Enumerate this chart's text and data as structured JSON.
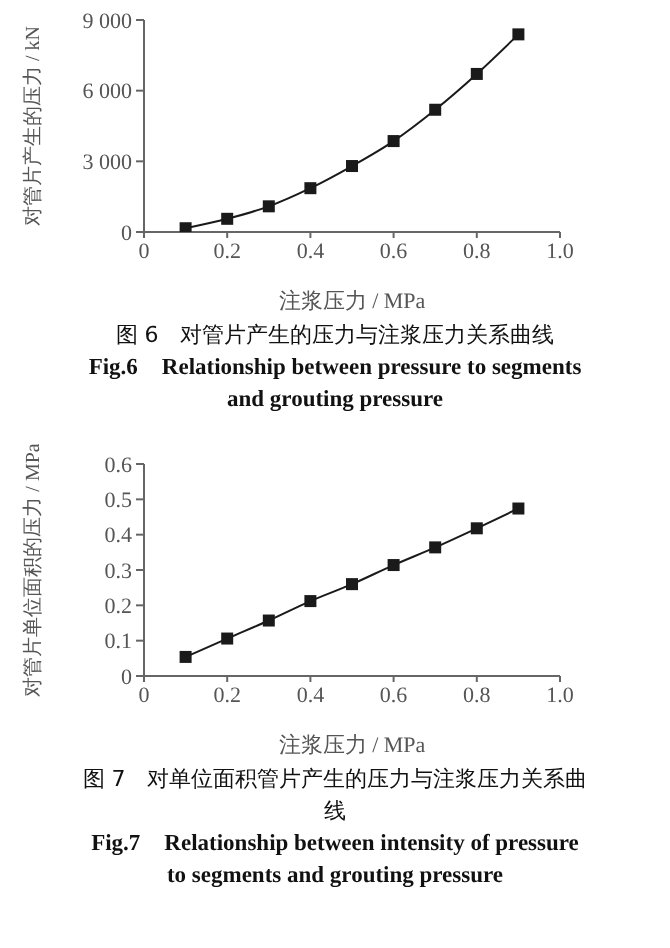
{
  "chart_data": [
    {
      "type": "line",
      "xlabel": "注浆压力 / MPa",
      "ylabel": "对管片产生的压力 / kN",
      "x": [
        0.1,
        0.2,
        0.3,
        0.4,
        0.5,
        0.6,
        0.7,
        0.8,
        0.9
      ],
      "series": [
        {
          "color": "#1a1a1a",
          "values": [
            160,
            560,
            1090,
            1860,
            2800,
            3860,
            5190,
            6710,
            8390
          ]
        }
      ],
      "xlim": [
        0,
        1
      ],
      "xticks": [
        0,
        0.2,
        0.4,
        0.6,
        0.8,
        {
          "value": 1,
          "label": "1.0"
        }
      ],
      "ylim": [
        0,
        9000
      ],
      "yticks": [
        0,
        {
          "value": 3000,
          "label": "3 000"
        },
        {
          "value": 6000,
          "label": "6 000"
        },
        {
          "value": 9000,
          "label": "9 000"
        }
      ],
      "grid": false,
      "legend": false,
      "marker": "square",
      "line_style": "solid",
      "annotations": [
        "图 6　对管片产生的压力与注浆压力关系曲线",
        "Fig.6　Relationship between pressure to segments and grouting pressure"
      ]
    },
    {
      "type": "line",
      "xlabel": "注浆压力 / MPa",
      "ylabel": "对管片单位面积的压力 / MPa",
      "x": [
        0.1,
        0.2,
        0.3,
        0.4,
        0.5,
        0.6,
        0.7,
        0.8,
        0.9
      ],
      "series": [
        {
          "color": "#1a1a1a",
          "values": [
            0.054,
            0.106,
            0.157,
            0.212,
            0.26,
            0.314,
            0.364,
            0.418,
            0.474
          ]
        }
      ],
      "xlim": [
        0,
        1
      ],
      "xticks": [
        0,
        0.2,
        0.4,
        0.6,
        0.8,
        {
          "value": 1,
          "label": "1.0"
        }
      ],
      "ylim": [
        0,
        0.6
      ],
      "yticks": [
        0,
        0.1,
        0.2,
        0.3,
        0.4,
        0.5,
        0.6
      ],
      "grid": false,
      "legend": false,
      "marker": "square",
      "line_style": "solid",
      "annotations": [
        "图 7　对单位面积管片产生的压力与注浆压力关系曲线",
        "Fig.7　Relationship between intensity of pressure to segments and grouting pressure"
      ]
    }
  ]
}
